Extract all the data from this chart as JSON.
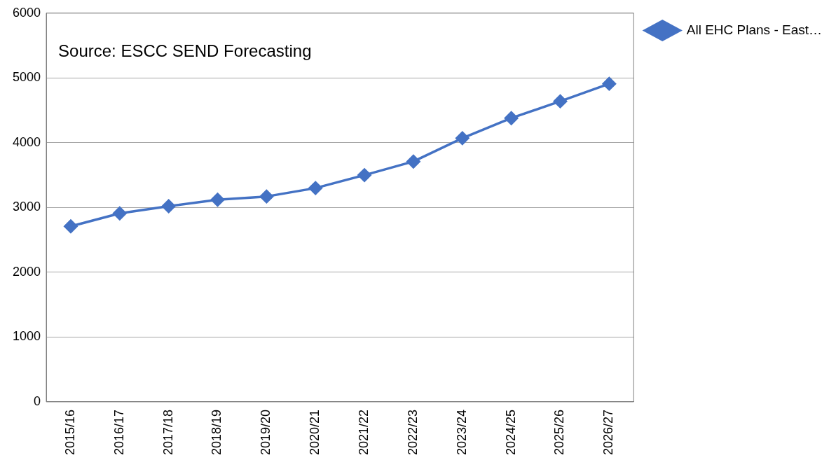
{
  "chart_data": {
    "type": "line",
    "categories": [
      "2015/16",
      "2016/17",
      "2017/18",
      "2018/19",
      "2019/20",
      "2020/21",
      "2021/22",
      "2022/23",
      "2023/24",
      "2024/25",
      "2025/26",
      "2026/27"
    ],
    "series": [
      {
        "name": "All EHC Plans - East…",
        "color": "#4472c4",
        "values": [
          2710,
          2910,
          3020,
          3120,
          3170,
          3300,
          3500,
          3710,
          4070,
          4380,
          4640,
          4910
        ]
      }
    ],
    "ylim": [
      0,
      6000
    ],
    "yticks": [
      0,
      1000,
      2000,
      3000,
      4000,
      5000,
      6000
    ],
    "grid": "y",
    "legend": "top right",
    "marker": "diamond",
    "line_style": "solid",
    "annotations": [
      "Source: ESCC SEND Forecasting"
    ]
  }
}
